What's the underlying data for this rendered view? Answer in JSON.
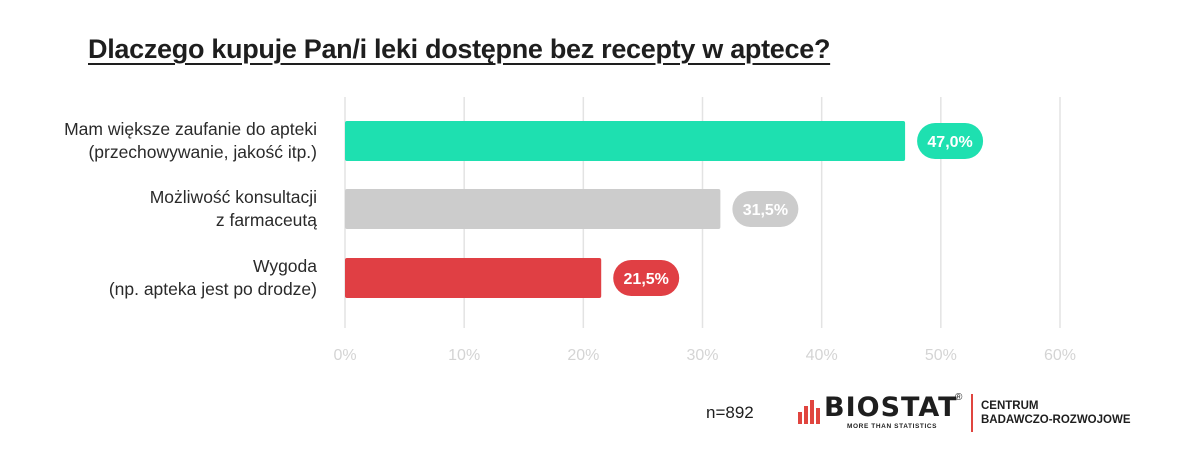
{
  "title": "Dlaczego kupuje Pan/i leki dostępne bez recepty w aptece?",
  "chart_data": {
    "type": "bar",
    "orientation": "horizontal",
    "categories": [
      [
        "Mam większe zaufanie do apteki",
        "(przechowywanie, jakość itp.)"
      ],
      [
        "Możliwość konsultacji",
        "z farmaceutą"
      ],
      [
        "Wygoda",
        "(np. apteka jest po drodze)"
      ]
    ],
    "values": [
      47.0,
      31.5,
      21.5
    ],
    "value_labels": [
      "47,0%",
      "31,5%",
      "21,5%"
    ],
    "colors": [
      "#1ee0b0",
      "#cccccc",
      "#e03f44"
    ],
    "xlim": [
      0,
      60
    ],
    "xticks": [
      "0%",
      "10%",
      "20%",
      "30%",
      "40%",
      "50%",
      "60%"
    ],
    "grid": true,
    "legend": "none"
  },
  "footer": {
    "sample": "n=892",
    "logo_name": "BIOSTAT",
    "logo_registered": "®",
    "logo_tagline": "MORE THAN STATISTICS",
    "logo_sub_line1": "CENTRUM",
    "logo_sub_line2": "BADAWCZO-ROZWOJOWE"
  }
}
